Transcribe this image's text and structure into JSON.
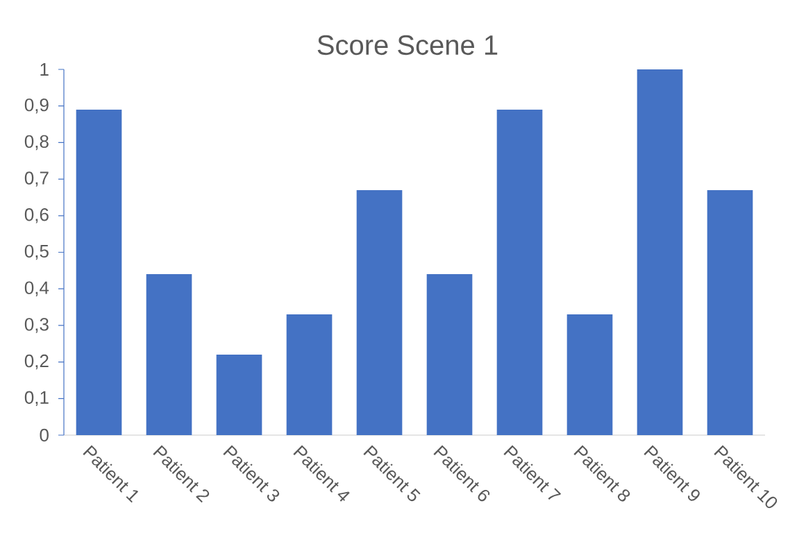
{
  "chart_data": {
    "type": "bar",
    "title": "Score Scene 1",
    "categories": [
      "Patient 1",
      "Patient 2",
      "Patient 3",
      "Patient 4",
      "Patient 5",
      "Patient 6",
      "Patient 7",
      "Patient 8",
      "Patient 9",
      "Patient 10"
    ],
    "values": [
      0.89,
      0.44,
      0.22,
      0.33,
      0.67,
      0.44,
      0.89,
      0.33,
      1,
      0.67
    ],
    "color": "#4472c4",
    "ylim": [
      0,
      1
    ],
    "yticks": [
      0,
      {
        "value": 0.1,
        "label": "0,1"
      },
      {
        "value": 0.2,
        "label": "0,2"
      },
      {
        "value": 0.3,
        "label": "0,3"
      },
      {
        "value": 0.4,
        "label": "0,4"
      },
      {
        "value": 0.5,
        "label": "0,5"
      },
      {
        "value": 0.6,
        "label": "0,6"
      },
      {
        "value": 0.7,
        "label": "0,7"
      },
      {
        "value": 0.8,
        "label": "0,8"
      },
      {
        "value": 0.9,
        "label": "0,9"
      },
      1
    ]
  }
}
